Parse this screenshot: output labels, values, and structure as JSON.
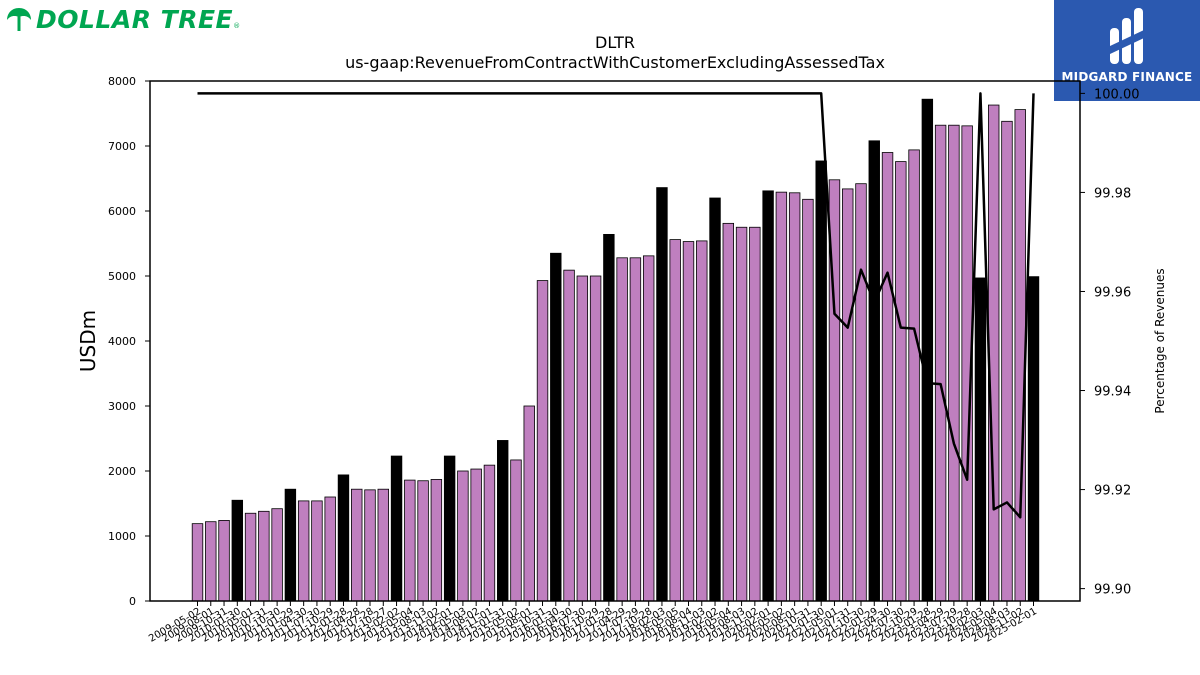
{
  "brand": {
    "left_name": "DOLLAR TREE",
    "left_mark": "®",
    "right_name": "MIDGARD FINANCE"
  },
  "chart_data": {
    "type": "bar",
    "title": "DLTR",
    "subtitle": "us-gaap:RevenueFromContractWithCustomerExcludingAssessedTax",
    "ylabel": "USDm",
    "y2label": "Percentage of Revenues",
    "ylim": [
      0,
      8000
    ],
    "y2lim": [
      99.8975,
      100.0025
    ],
    "yticks": [
      0,
      1000,
      2000,
      3000,
      4000,
      5000,
      6000,
      7000,
      8000
    ],
    "y2ticks": [
      "99.90",
      "99.92",
      "99.94",
      "99.96",
      "99.98",
      "100.00"
    ],
    "grid": false,
    "colors": {
      "quarter": "#bf7fbf",
      "annual": "#000000",
      "line": "#000000"
    },
    "categories": [
      "2009-05-02",
      "2009-08-01",
      "2009-10-31",
      "2010-01-30",
      "2010-05-01",
      "2010-07-31",
      "2010-10-30",
      "2011-01-29",
      "2011-04-30",
      "2011-07-30",
      "2011-10-29",
      "2012-01-28",
      "2012-04-28",
      "2012-07-28",
      "2012-10-27",
      "2013-02-02",
      "2013-05-04",
      "2013-08-03",
      "2013-11-02",
      "2014-02-01",
      "2014-05-03",
      "2014-08-02",
      "2014-11-01",
      "2015-01-31",
      "2015-05-02",
      "2015-08-01",
      "2015-10-31",
      "2016-01-30",
      "2016-04-30",
      "2016-07-30",
      "2016-10-29",
      "2017-01-28",
      "2017-04-29",
      "2017-07-29",
      "2017-10-28",
      "2018-02-03",
      "2018-05-05",
      "2018-08-04",
      "2018-11-03",
      "2019-02-02",
      "2019-05-04",
      "2019-08-03",
      "2019-11-02",
      "2020-02-01",
      "2020-05-02",
      "2020-08-01",
      "2020-10-31",
      "2021-01-30",
      "2021-05-01",
      "2021-07-31",
      "2021-10-30",
      "2022-01-29",
      "2022-04-30",
      "2022-07-30",
      "2022-10-29",
      "2023-01-28",
      "2023-04-29",
      "2023-07-29",
      "2023-10-28",
      "2024-02-03",
      "2024-05-04",
      "2024-08-03",
      "2024-11-02",
      "2025-02-01"
    ],
    "tick_labels": [
      "2009-05-02",
      "2009-08-01",
      "2009-10-31",
      "2010-01-30",
      "2010-05-01",
      "2010-07-31",
      "2010-10-30",
      "2011-01-29",
      "2011-04-30",
      "2011-07-30",
      "2011-10-29",
      "2012-01-28",
      "2012-04-28",
      "2012-07-28",
      "2012-10-27",
      "2013-02-02",
      "2013-05-04",
      "2013-08-03",
      "2013-11-02",
      "2014-02-01",
      "2014-05-03",
      "2014-08-02",
      "2014-11-01",
      "2015-01-31",
      "2015-05-02",
      "2015-08-01",
      "2015-10-31",
      "2016-01-30",
      "2016-04-30",
      "2016-07-30",
      "2016-10-29",
      "2017-01-28",
      "2017-04-29",
      "2017-07-29",
      "2017-10-28",
      "2018-02-03",
      "2018-05-05",
      "2018-08-04",
      "2018-11-03",
      "2019-02-02",
      "2019-05-04",
      "2019-08-03",
      "2019-11-02",
      "2020-02-01",
      "2020-05-02",
      "2020-08-01",
      "2020-10-31",
      "2021-01-30",
      "2021-05-01",
      "2021-07-31",
      "2021-10-30",
      "2022-01-29",
      "2022-04-30",
      "2022-07-30",
      "2022-10-29",
      "2023-01-28",
      "2023-04-29",
      "2023-07-29",
      "2023-10-28",
      "2024-02-03",
      "2024-05-04",
      "2024-08-03",
      "2024-11-02",
      "2025-02-01"
    ],
    "annual": [
      false,
      false,
      false,
      true,
      false,
      false,
      false,
      true,
      false,
      false,
      false,
      true,
      false,
      false,
      false,
      true,
      false,
      false,
      false,
      true,
      false,
      false,
      false,
      true,
      false,
      false,
      false,
      true,
      false,
      false,
      false,
      true,
      false,
      false,
      false,
      true,
      false,
      false,
      false,
      true,
      false,
      false,
      false,
      true,
      false,
      false,
      false,
      true,
      false,
      false,
      false,
      true,
      false,
      false,
      false,
      true,
      false,
      false,
      false,
      true,
      false,
      false,
      false,
      true
    ],
    "series": [
      {
        "values": [
          1190,
          1220,
          1240,
          1550,
          1350,
          1380,
          1420,
          1720,
          1540,
          1540,
          1600,
          1940,
          1720,
          1710,
          1720,
          2230,
          1860,
          1850,
          1870,
          2230,
          2000,
          2030,
          2090,
          2470,
          2170,
          3000,
          4930,
          5350,
          5090,
          5000,
          5000,
          5640,
          5280,
          5280,
          5310,
          6360,
          5560,
          5530,
          5540,
          6200,
          5810,
          5750,
          5750,
          6310,
          6290,
          6280,
          6180,
          6770,
          6480,
          6340,
          6420,
          7080,
          6900,
          6760,
          6940,
          7720,
          7320,
          7320,
          7310,
          4970,
          7630,
          7380,
          7560,
          4990
        ]
      },
      {
        "values": [
          100,
          100,
          100,
          100,
          100,
          100,
          100,
          100,
          100,
          100,
          100,
          100,
          100,
          100,
          100,
          100,
          100,
          100,
          100,
          100,
          100,
          100,
          100,
          100,
          100,
          100,
          100,
          100,
          100,
          100,
          100,
          100,
          100,
          100,
          100,
          100,
          100,
          100,
          100,
          100,
          100,
          100,
          100,
          100,
          100,
          100,
          100,
          100,
          99.9555,
          99.9527,
          99.9644,
          99.9578,
          99.9638,
          99.9527,
          99.9525,
          99.9415,
          99.9413,
          99.9293,
          99.922,
          100,
          99.916,
          99.9174,
          99.9144,
          100
        ]
      }
    ]
  }
}
